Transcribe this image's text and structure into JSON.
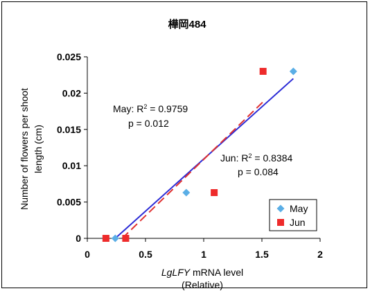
{
  "chart_data": {
    "type": "scatter",
    "title": "樺岡484",
    "xlabel_italic": "LgLFY",
    "xlabel_rest": " mRNA level",
    "xlabel_line2": "(Relative)",
    "ylabel_line1": "Number of flowers per shoot",
    "ylabel_line2": "length (cm)",
    "xlim": [
      0,
      2
    ],
    "ylim": [
      0,
      0.025
    ],
    "xticks": [
      "0",
      "0.5",
      "1",
      "1.5",
      "2"
    ],
    "yticks": [
      "0",
      "0.005",
      "0.01",
      "0.015",
      "0.02",
      "0.025"
    ],
    "grid": false,
    "legend_position": "bottom-right",
    "series": [
      {
        "name": "May",
        "color": "#5aaee6",
        "marker": "diamond",
        "points": [
          [
            0.24,
            0.0
          ],
          [
            0.85,
            0.0063
          ],
          [
            1.77,
            0.023
          ]
        ],
        "fit": {
          "style": "solid",
          "color": "#2b2bd6",
          "x": [
            0.24,
            1.77
          ],
          "y": [
            0.0,
            0.022
          ]
        }
      },
      {
        "name": "Jun",
        "color": "#ee2b2b",
        "marker": "square",
        "points": [
          [
            0.16,
            0.0
          ],
          [
            0.33,
            0.0
          ],
          [
            1.09,
            0.0063
          ],
          [
            1.51,
            0.023
          ]
        ],
        "fit": {
          "style": "dashed",
          "color": "#e03030",
          "x": [
            0.3,
            1.51
          ],
          "y": [
            0.0,
            0.0188
          ]
        }
      }
    ],
    "annotations": {
      "may_r2_prefix": "May: R",
      "may_r2_value": " = 0.9759",
      "may_p": "p = 0.012",
      "jun_r2_prefix": "Jun: R",
      "jun_r2_value": " = 0.8384",
      "jun_p": "p = 0.084",
      "superscript": "2"
    }
  }
}
